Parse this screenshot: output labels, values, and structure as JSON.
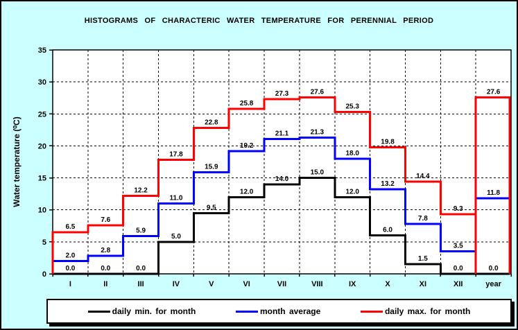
{
  "title": "HISTOGRAMS OF CHARACTERIC WATER TEMPERATURE FOR PERENNIAL PERIOD",
  "colors": {
    "background": "#CCFFFF",
    "plot_background": "#FFFFFF",
    "axis": "#000000",
    "min_series": "#000000",
    "avg_series": "#0000FF",
    "max_series": "#FF0000"
  },
  "chart_data": {
    "type": "step-histogram",
    "title": "HISTOGRAMS OF CHARACTERIC WATER TEMPERATURE FOR PERENNIAL PERIOD",
    "ylabel": "Water temperature (⁰C)",
    "xlabel": "",
    "ylim": [
      0,
      35
    ],
    "ytick_step": 5,
    "yticks": [
      0,
      5,
      10,
      15,
      20,
      25,
      30,
      35
    ],
    "grid": true,
    "legend_position": "bottom",
    "categories": [
      "I",
      "II",
      "III",
      "IV",
      "V",
      "VI",
      "VII",
      "VIII",
      "IX",
      "X",
      "XI",
      "XII",
      "year"
    ],
    "series": [
      {
        "name": "daily min. for month",
        "color": "#000000",
        "values": [
          0.0,
          0.0,
          0.0,
          5.0,
          9.5,
          12.0,
          14.0,
          15.0,
          12.0,
          6.0,
          1.5,
          0.0,
          0.0
        ]
      },
      {
        "name": "month average",
        "color": "#0000FF",
        "values": [
          2.0,
          2.8,
          5.9,
          11.0,
          15.9,
          19.2,
          21.1,
          21.3,
          18.0,
          13.2,
          7.8,
          3.5,
          11.8
        ]
      },
      {
        "name": "daily max. for month",
        "color": "#FF0000",
        "values": [
          6.5,
          7.6,
          12.2,
          17.8,
          22.8,
          25.8,
          27.3,
          27.6,
          25.3,
          19.8,
          14.4,
          9.3,
          27.6
        ]
      }
    ]
  }
}
